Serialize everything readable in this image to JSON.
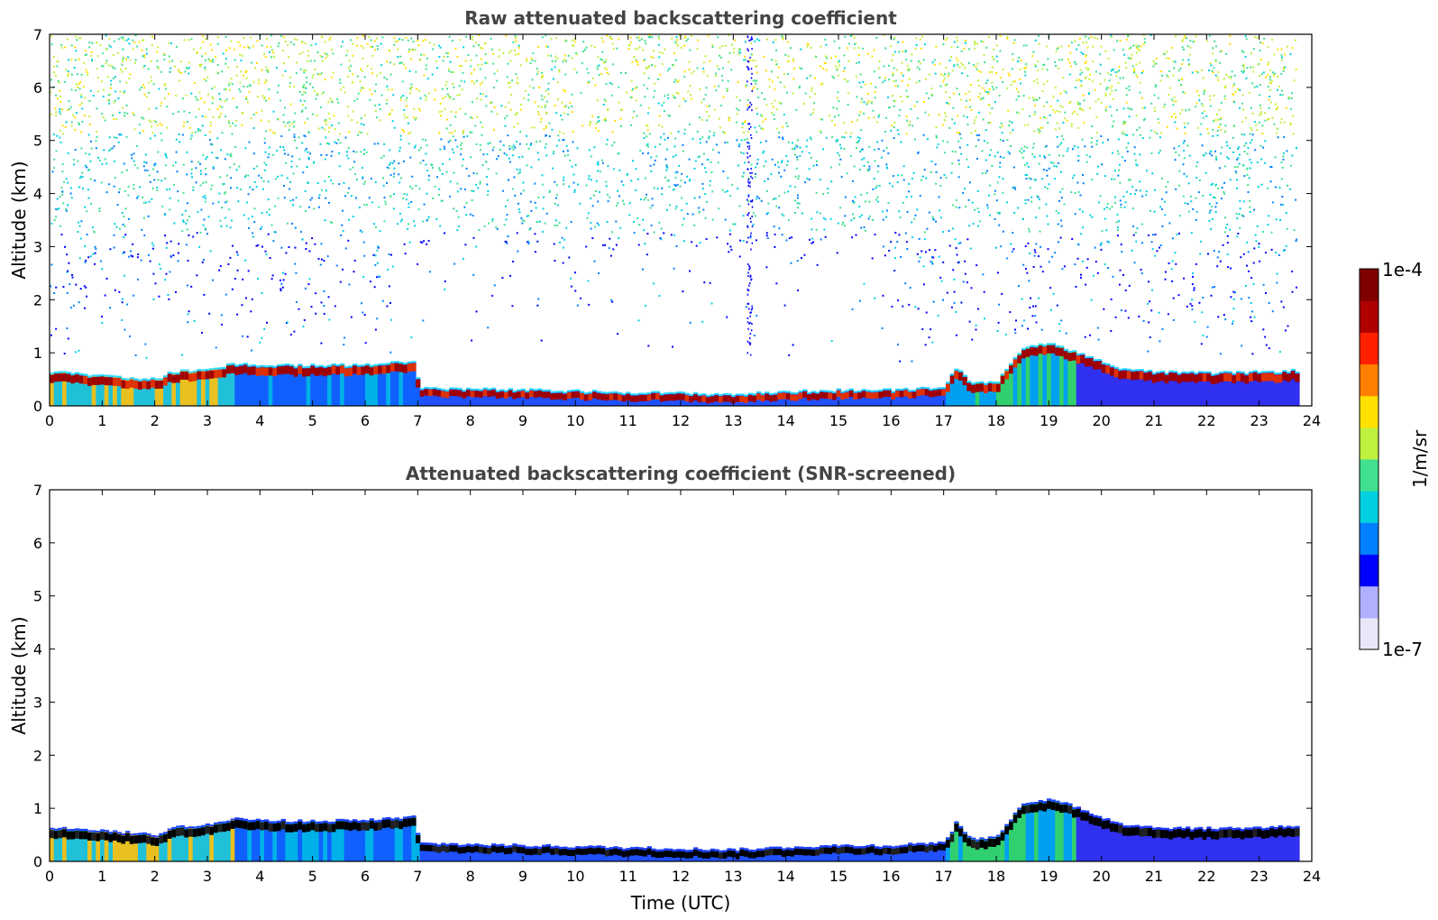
{
  "chart_data": [
    {
      "type": "heatmap",
      "title": "Raw attenuated backscattering coefficient",
      "xlabel": "",
      "ylabel": "Altitude (km)",
      "xlim": [
        0,
        24
      ],
      "ylim": [
        0,
        7
      ],
      "xticks": [
        "0",
        "1",
        "2",
        "3",
        "4",
        "5",
        "6",
        "7",
        "8",
        "9",
        "10",
        "11",
        "12",
        "13",
        "14",
        "15",
        "16",
        "17",
        "18",
        "19",
        "20",
        "21",
        "22",
        "23",
        "24"
      ],
      "yticks": [
        "0",
        "1",
        "2",
        "3",
        "4",
        "5",
        "6",
        "7"
      ],
      "data_end_hour": 23.7,
      "layer_top_km": {
        "hours": [
          0,
          1,
          2,
          2.3,
          3,
          3.5,
          4,
          5,
          6,
          6.9,
          7,
          9,
          11,
          13,
          14,
          15,
          16,
          17,
          17.2,
          17.5,
          18,
          18.5,
          19,
          19.5,
          20,
          20.4,
          21,
          22,
          23,
          23.7
        ],
        "km": [
          0.62,
          0.55,
          0.48,
          0.62,
          0.68,
          0.78,
          0.75,
          0.74,
          0.76,
          0.82,
          0.32,
          0.28,
          0.24,
          0.2,
          0.25,
          0.28,
          0.28,
          0.35,
          0.7,
          0.4,
          0.45,
          1.1,
          1.15,
          1.0,
          0.8,
          0.68,
          0.62,
          0.6,
          0.62,
          0.65
        ]
      },
      "noise_region": "above boundary layer, strongest above 3 km"
    },
    {
      "type": "heatmap",
      "title": "Attenuated backscattering coefficient (SNR-screened)",
      "xlabel": "Time (UTC)",
      "ylabel": "Altitude (km)",
      "xlim": [
        0,
        24
      ],
      "ylim": [
        0,
        7
      ],
      "xticks": [
        "0",
        "1",
        "2",
        "3",
        "4",
        "5",
        "6",
        "7",
        "8",
        "9",
        "10",
        "11",
        "12",
        "13",
        "14",
        "15",
        "16",
        "17",
        "18",
        "19",
        "20",
        "21",
        "22",
        "23",
        "24"
      ],
      "yticks": [
        "0",
        "1",
        "2",
        "3",
        "4",
        "5",
        "6",
        "7"
      ],
      "data_end_hour": 23.7,
      "noise_region": "screened out"
    }
  ],
  "colorbar": {
    "max_label": "1e-4",
    "min_label": "1e-7",
    "unit_label": "1/m/sr",
    "colors": [
      "#e8e8f8",
      "#b0b0ff",
      "#0000ff",
      "#0080ff",
      "#00d0e0",
      "#40e090",
      "#c0f040",
      "#ffe000",
      "#ff8000",
      "#ff2000",
      "#b00000",
      "#800000"
    ]
  }
}
